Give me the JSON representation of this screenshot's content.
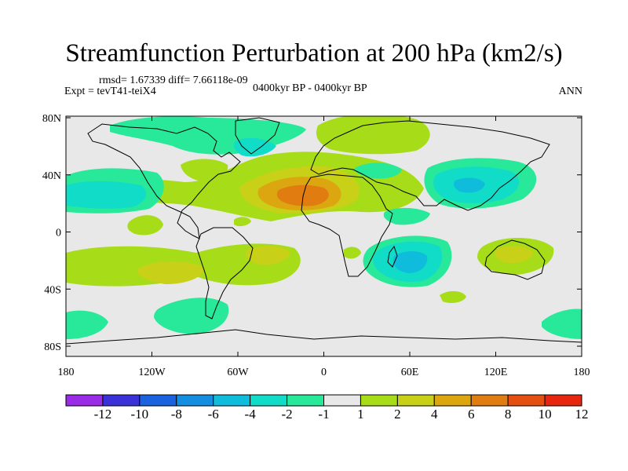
{
  "title": "Streamfunction Perturbation at 200 hPa (km2/s)",
  "stats": "rmsd= 1.67339 diff= 7.66118e-09",
  "experiment": "Expt = tevT41-teiX4",
  "period": "0400kyr BP - 0400kyr BP",
  "season": "ANN",
  "map": {
    "lon_ticks": [
      "180",
      "120W",
      "60W",
      "0",
      "60E",
      "120E",
      "180"
    ],
    "lat_ticks": [
      "80N",
      "40N",
      "0",
      "40S",
      "80S"
    ],
    "background_color": "#e8e8e8"
  },
  "colorbar": {
    "labels": [
      "-12",
      "-10",
      "-8",
      "-6",
      "-4",
      "-2",
      "-1",
      "1",
      "2",
      "4",
      "6",
      "8",
      "10",
      "12"
    ],
    "colors": [
      "#9a2ce8",
      "#3a32d8",
      "#1a62e0",
      "#138ee0",
      "#10bcdc",
      "#10dcc8",
      "#28e89a",
      "#e8e8e8",
      "#a6dc18",
      "#c8d018",
      "#dca610",
      "#e07c10",
      "#e45010",
      "#e8260e"
    ]
  }
}
